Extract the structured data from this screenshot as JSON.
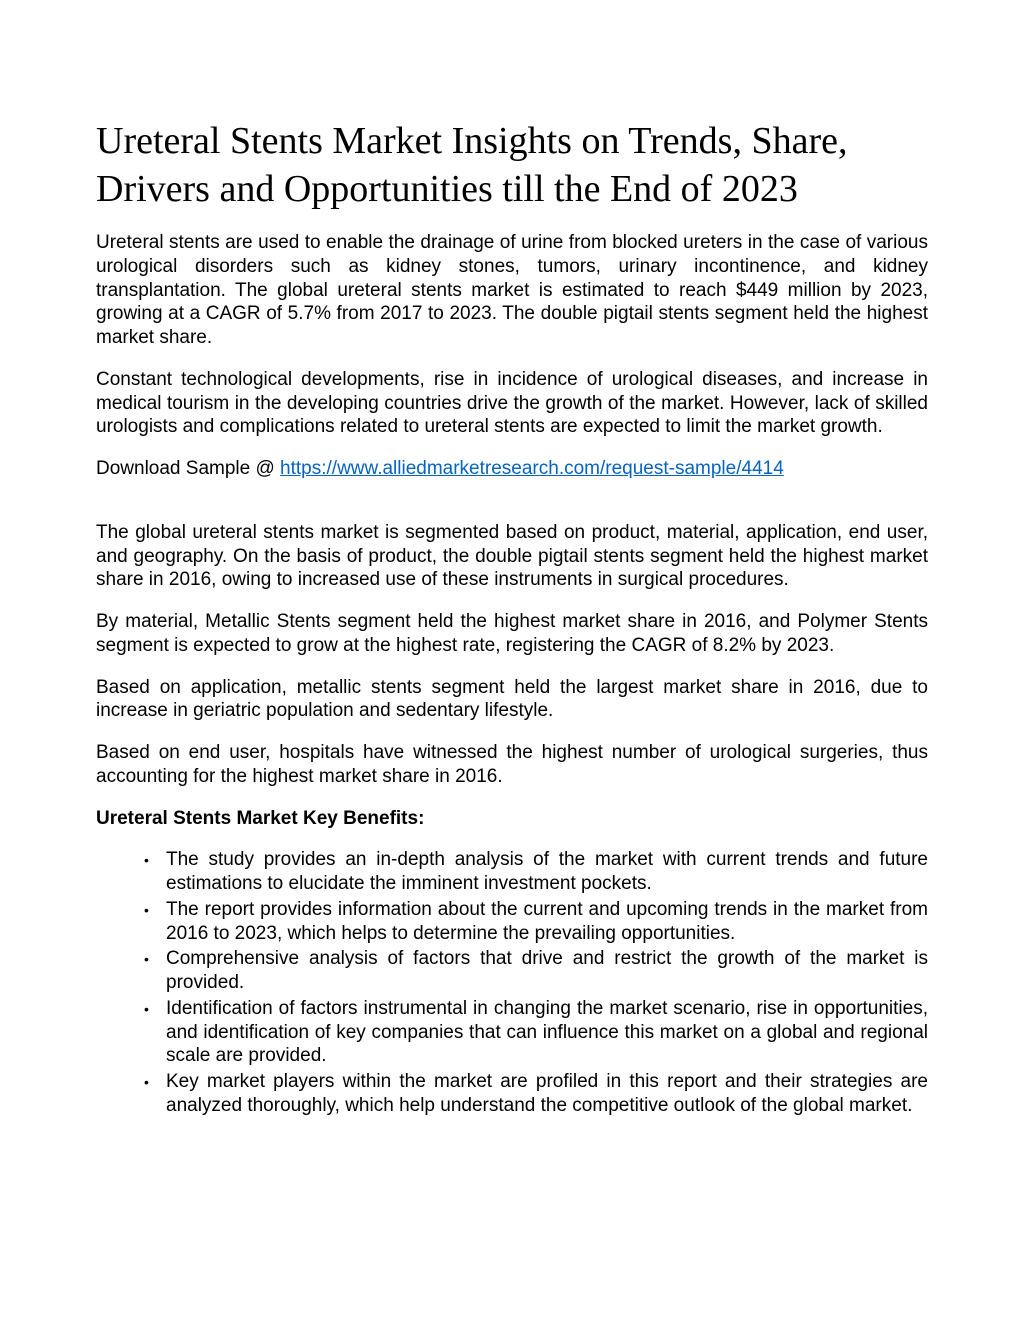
{
  "title": "Ureteral Stents Market Insights on Trends, Share, Drivers and Opportunities till the End of 2023",
  "p1": "Ureteral stents are used to enable the drainage of urine from blocked ureters in the case of various urological disorders such as kidney stones, tumors, urinary incontinence, and kidney transplantation. The global ureteral stents market is estimated to reach $449 million by 2023, growing at a CAGR of 5.7% from 2017 to 2023. The double pigtail stents segment held the highest market share.",
  "p2": "Constant technological developments, rise in incidence of urological diseases, and increase in medical tourism in the developing countries drive the growth of the market. However, lack of skilled urologists and complications related to ureteral stents are expected to limit the market growth.",
  "download_prefix": "Download Sample @ ",
  "download_link": "https://www.alliedmarketresearch.com/request-sample/4414",
  "p3": "The global ureteral stents market is segmented based on product, material, application, end user, and geography. On the basis of product, the double pigtail stents segment held the highest market share in 2016, owing to increased use of these instruments in surgical procedures.",
  "p4": "By material, Metallic Stents segment held the highest market share in 2016, and Polymer Stents segment is expected to grow at the highest rate, registering the CAGR of 8.2% by 2023.",
  "p5": "Based on application, metallic stents segment held the largest market share in 2016, due to increase in geriatric population and sedentary lifestyle.",
  "p6": "Based on end user, hospitals have witnessed the highest number of urological surgeries, thus accounting for the highest market share in 2016.",
  "benefits_heading": "Ureteral Stents Market Key Benefits:",
  "bullets": [
    "The study provides an in-depth analysis of the market with current trends and future estimations to elucidate the imminent investment pockets.",
    "The report provides information about the current and upcoming trends in the market from 2016 to 2023, which helps to determine the prevailing opportunities.",
    "Comprehensive analysis of factors that drive and restrict the growth of the market is provided.",
    "Identification of factors instrumental in changing the market scenario, rise in opportunities, and identification of key companies that can influence this market on a global and regional scale are provided.",
    "Key market players within the market are profiled in this report and their strategies are analyzed thoroughly, which help understand the competitive outlook of the global market."
  ]
}
